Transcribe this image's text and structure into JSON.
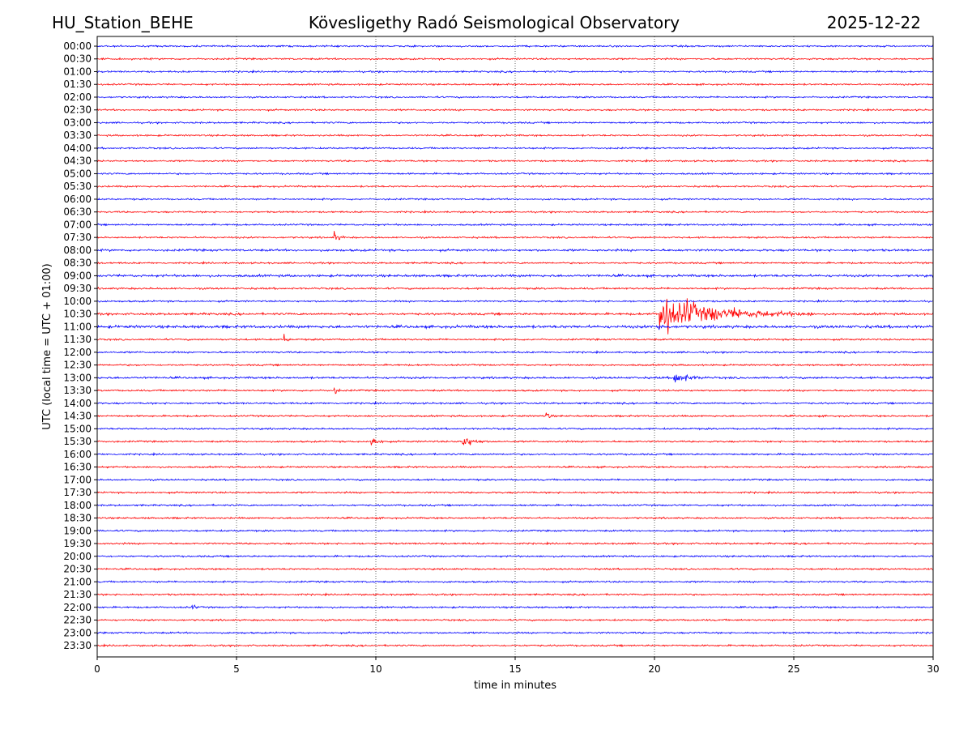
{
  "header": {
    "station": "HU_Station_BEHE",
    "observatory": "Kövesligethy Radó Seismological Observatory",
    "date": "2025-12-22"
  },
  "chart_data": {
    "type": "line",
    "title": "Kövesligethy Radó Seismological Observatory",
    "xlabel": "time in minutes",
    "ylabel": "UTC (local time = UTC + 01:00)",
    "xlim": [
      0,
      30
    ],
    "x_ticks": [
      "0",
      "5",
      "10",
      "15",
      "20",
      "25",
      "30"
    ],
    "grid_x": [
      5,
      10,
      15,
      20,
      25
    ],
    "trace_colors": [
      "#0000ff",
      "#ff0000"
    ],
    "row_labels": [
      "00:00",
      "00:30",
      "01:00",
      "01:30",
      "02:00",
      "02:30",
      "03:00",
      "03:30",
      "04:00",
      "04:30",
      "05:00",
      "05:30",
      "06:00",
      "06:30",
      "07:00",
      "07:30",
      "08:00",
      "08:30",
      "09:00",
      "09:30",
      "10:00",
      "10:30",
      "11:00",
      "11:30",
      "12:00",
      "12:30",
      "13:00",
      "13:30",
      "14:00",
      "14:30",
      "15:00",
      "15:30",
      "16:00",
      "16:30",
      "17:00",
      "17:30",
      "18:00",
      "18:30",
      "19:00",
      "19:30",
      "20:00",
      "20:30",
      "21:00",
      "21:30",
      "22:00",
      "22:30",
      "23:00",
      "23:30"
    ],
    "noise_level": 0.7,
    "row_noise": {
      "08:00": 1.3,
      "09:00": 1.4,
      "09:30": 1.1,
      "10:30": 1.3,
      "11:00": 1.6,
      "13:00": 1.2
    },
    "events": [
      {
        "row": "07:30",
        "minute": 8.5,
        "amp": 5,
        "duration_min": 0.4
      },
      {
        "row": "10:30",
        "minute": 20.15,
        "amp": 16,
        "duration_min": 5.5
      },
      {
        "row": "11:00",
        "minute": 20.15,
        "amp": 4,
        "duration_min": 0.3
      },
      {
        "row": "11:30",
        "minute": 6.7,
        "amp": 4,
        "duration_min": 0.3
      },
      {
        "row": "13:00",
        "minute": 20.7,
        "amp": 6,
        "duration_min": 1.2
      },
      {
        "row": "13:30",
        "minute": 8.5,
        "amp": 4,
        "duration_min": 0.3
      },
      {
        "row": "14:30",
        "minute": 16.1,
        "amp": 5,
        "duration_min": 0.3
      },
      {
        "row": "15:30",
        "minute": 9.8,
        "amp": 5,
        "duration_min": 0.7
      },
      {
        "row": "15:30",
        "minute": 13.1,
        "amp": 7,
        "duration_min": 0.9
      },
      {
        "row": "22:00",
        "minute": 3.4,
        "amp": 3,
        "duration_min": 0.3
      }
    ]
  }
}
